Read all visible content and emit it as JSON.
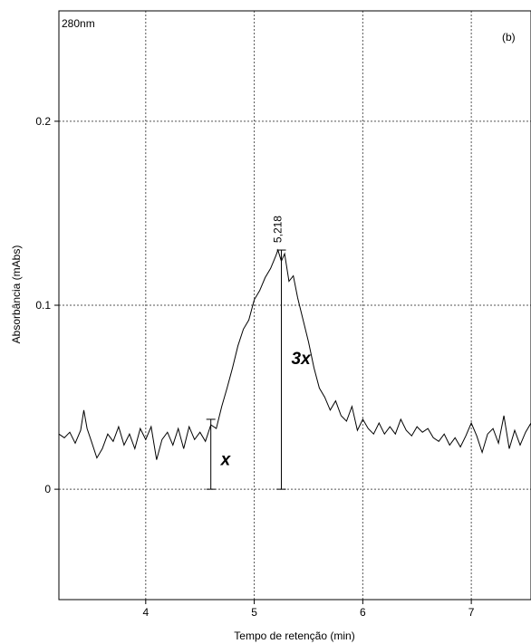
{
  "chart_data": {
    "type": "line",
    "wavelength_label": "280nm",
    "panel_label": "(b)",
    "xlabel": "Tempo de retenção (min)",
    "ylabel": "Absorbância (mAbs)",
    "xlim": [
      3.2,
      7.55
    ],
    "ylim": [
      -0.06,
      0.26
    ],
    "x_ticks": [
      4,
      5,
      6,
      7
    ],
    "x_tick_labels": [
      "4",
      "5",
      "6",
      "7"
    ],
    "y_ticks": [
      0,
      0.1,
      0.2
    ],
    "y_tick_labels": [
      "0",
      "0.1",
      "0.2"
    ],
    "grid": true,
    "grid_style": "dotted",
    "peak": {
      "x": 5.218,
      "y": 0.13,
      "label": "5,218"
    },
    "annotations": [
      {
        "label": "x",
        "x": 4.6,
        "y_from": 0,
        "y_to": 0.038
      },
      {
        "label": "3x",
        "x": 5.25,
        "y_from": 0,
        "y_to": 0.13
      }
    ],
    "series": [
      {
        "color": "#000000",
        "points": [
          [
            3.2,
            0.03
          ],
          [
            3.25,
            0.028
          ],
          [
            3.3,
            0.031
          ],
          [
            3.35,
            0.025
          ],
          [
            3.4,
            0.032
          ],
          [
            3.43,
            0.043
          ],
          [
            3.46,
            0.033
          ],
          [
            3.5,
            0.026
          ],
          [
            3.55,
            0.017
          ],
          [
            3.6,
            0.022
          ],
          [
            3.65,
            0.03
          ],
          [
            3.7,
            0.026
          ],
          [
            3.75,
            0.034
          ],
          [
            3.8,
            0.024
          ],
          [
            3.85,
            0.03
          ],
          [
            3.9,
            0.022
          ],
          [
            3.95,
            0.033
          ],
          [
            4.0,
            0.027
          ],
          [
            4.05,
            0.034
          ],
          [
            4.1,
            0.016
          ],
          [
            4.15,
            0.027
          ],
          [
            4.2,
            0.031
          ],
          [
            4.25,
            0.024
          ],
          [
            4.3,
            0.033
          ],
          [
            4.35,
            0.022
          ],
          [
            4.4,
            0.034
          ],
          [
            4.45,
            0.027
          ],
          [
            4.5,
            0.031
          ],
          [
            4.55,
            0.026
          ],
          [
            4.6,
            0.035
          ],
          [
            4.65,
            0.033
          ],
          [
            4.7,
            0.045
          ],
          [
            4.75,
            0.055
          ],
          [
            4.8,
            0.066
          ],
          [
            4.85,
            0.078
          ],
          [
            4.9,
            0.087
          ],
          [
            4.95,
            0.092
          ],
          [
            5.0,
            0.103
          ],
          [
            5.05,
            0.108
          ],
          [
            5.1,
            0.115
          ],
          [
            5.15,
            0.12
          ],
          [
            5.2,
            0.127
          ],
          [
            5.218,
            0.13
          ],
          [
            5.25,
            0.124
          ],
          [
            5.28,
            0.128
          ],
          [
            5.32,
            0.113
          ],
          [
            5.36,
            0.116
          ],
          [
            5.4,
            0.104
          ],
          [
            5.45,
            0.092
          ],
          [
            5.5,
            0.08
          ],
          [
            5.55,
            0.066
          ],
          [
            5.6,
            0.055
          ],
          [
            5.65,
            0.05
          ],
          [
            5.7,
            0.043
          ],
          [
            5.75,
            0.048
          ],
          [
            5.8,
            0.04
          ],
          [
            5.85,
            0.037
          ],
          [
            5.9,
            0.045
          ],
          [
            5.95,
            0.032
          ],
          [
            6.0,
            0.038
          ],
          [
            6.05,
            0.033
          ],
          [
            6.1,
            0.03
          ],
          [
            6.15,
            0.036
          ],
          [
            6.2,
            0.03
          ],
          [
            6.25,
            0.034
          ],
          [
            6.3,
            0.03
          ],
          [
            6.35,
            0.038
          ],
          [
            6.4,
            0.032
          ],
          [
            6.45,
            0.029
          ],
          [
            6.5,
            0.034
          ],
          [
            6.55,
            0.031
          ],
          [
            6.6,
            0.033
          ],
          [
            6.65,
            0.028
          ],
          [
            6.7,
            0.026
          ],
          [
            6.75,
            0.03
          ],
          [
            6.8,
            0.024
          ],
          [
            6.85,
            0.028
          ],
          [
            6.9,
            0.023
          ],
          [
            6.95,
            0.029
          ],
          [
            7.0,
            0.036
          ],
          [
            7.05,
            0.029
          ],
          [
            7.1,
            0.02
          ],
          [
            7.15,
            0.03
          ],
          [
            7.2,
            0.033
          ],
          [
            7.25,
            0.025
          ],
          [
            7.3,
            0.04
          ],
          [
            7.35,
            0.022
          ],
          [
            7.4,
            0.032
          ],
          [
            7.45,
            0.024
          ],
          [
            7.5,
            0.031
          ],
          [
            7.55,
            0.036
          ]
        ]
      }
    ]
  }
}
